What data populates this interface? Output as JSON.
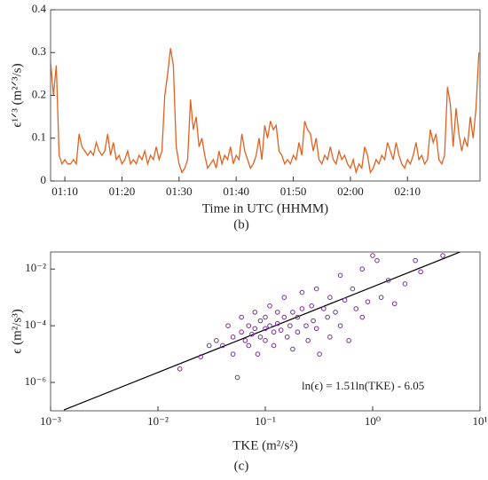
{
  "chart_data": [
    {
      "type": "line",
      "ylabel": "ϵ¹ᐟ³ (m²ᐟ³/s)",
      "xlabel": "Time in UTC (HHMM)",
      "caption": "(b)",
      "xlim": [
        67.5,
        142.7
      ],
      "ylim": [
        0,
        0.4
      ],
      "xticks": [
        {
          "value": 70,
          "label": "01:10"
        },
        {
          "value": 80,
          "label": "01:20"
        },
        {
          "value": 90,
          "label": "01:30"
        },
        {
          "value": 100,
          "label": "01:40"
        },
        {
          "value": 110,
          "label": "01:50"
        },
        {
          "value": 120,
          "label": "02:00"
        },
        {
          "value": 130,
          "label": "02:10"
        }
      ],
      "yticks": [
        0,
        0.1,
        0.2,
        0.3,
        0.4
      ],
      "series": [
        {
          "color": "#e2611f",
          "x": [
            67.5,
            68,
            68.5,
            69,
            69.5,
            70,
            70.5,
            71,
            71.5,
            72,
            72.5,
            73,
            73.5,
            74,
            74.5,
            75,
            75.5,
            76,
            76.5,
            77,
            77.5,
            78,
            78.5,
            79,
            79.5,
            80,
            80.5,
            81,
            81.5,
            82,
            82.5,
            83,
            83.5,
            84,
            84.5,
            85,
            85.5,
            86,
            86.5,
            87,
            87.5,
            88,
            88.5,
            89,
            89.5,
            90,
            90.5,
            91,
            91.5,
            92,
            92.5,
            93,
            93.5,
            94,
            94.5,
            95,
            95.5,
            96,
            96.5,
            97,
            97.5,
            98,
            98.5,
            99,
            99.5,
            100,
            100.5,
            101,
            101.5,
            102,
            102.5,
            103,
            103.5,
            104,
            104.5,
            105,
            105.5,
            106,
            106.5,
            107,
            107.5,
            108,
            108.5,
            109,
            109.5,
            110,
            110.5,
            111,
            111.5,
            112,
            112.5,
            113,
            113.5,
            114,
            114.5,
            115,
            115.5,
            116,
            116.5,
            117,
            117.5,
            118,
            118.5,
            119,
            119.5,
            120,
            120.5,
            121,
            121.5,
            122,
            122.5,
            123,
            123.5,
            124,
            124.5,
            125,
            125.5,
            126,
            126.5,
            127,
            127.5,
            128,
            128.5,
            129,
            129.5,
            130,
            130.5,
            131,
            131.5,
            132,
            132.5,
            133,
            133.5,
            134,
            134.5,
            135,
            135.5,
            136,
            136.5,
            137,
            137.5,
            138,
            138.5,
            139,
            139.5,
            140,
            140.5,
            141,
            141.5,
            142,
            142.5
          ],
          "values": [
            0.28,
            0.2,
            0.27,
            0.06,
            0.04,
            0.05,
            0.04,
            0.04,
            0.05,
            0.04,
            0.11,
            0.08,
            0.07,
            0.06,
            0.07,
            0.06,
            0.09,
            0.07,
            0.06,
            0.07,
            0.11,
            0.06,
            0.09,
            0.05,
            0.06,
            0.04,
            0.05,
            0.07,
            0.04,
            0.05,
            0.04,
            0.06,
            0.05,
            0.07,
            0.04,
            0.06,
            0.05,
            0.08,
            0.05,
            0.07,
            0.2,
            0.25,
            0.31,
            0.27,
            0.08,
            0.04,
            0.02,
            0.03,
            0.05,
            0.19,
            0.12,
            0.15,
            0.08,
            0.1,
            0.06,
            0.03,
            0.04,
            0.05,
            0.03,
            0.07,
            0.04,
            0.06,
            0.05,
            0.08,
            0.04,
            0.06,
            0.05,
            0.11,
            0.07,
            0.05,
            0.03,
            0.04,
            0.06,
            0.1,
            0.05,
            0.13,
            0.1,
            0.14,
            0.12,
            0.13,
            0.07,
            0.06,
            0.04,
            0.05,
            0.04,
            0.06,
            0.05,
            0.09,
            0.06,
            0.14,
            0.12,
            0.11,
            0.07,
            0.1,
            0.05,
            0.04,
            0.06,
            0.05,
            0.08,
            0.05,
            0.04,
            0.07,
            0.05,
            0.06,
            0.04,
            0.03,
            0.05,
            0.02,
            0.04,
            0.03,
            0.08,
            0.06,
            0.02,
            0.03,
            0.05,
            0.04,
            0.06,
            0.05,
            0.09,
            0.07,
            0.05,
            0.09,
            0.06,
            0.04,
            0.03,
            0.05,
            0.04,
            0.06,
            0.09,
            0.05,
            0.06,
            0.04,
            0.05,
            0.12,
            0.09,
            0.11,
            0.05,
            0.04,
            0.06,
            0.22,
            0.18,
            0.08,
            0.17,
            0.11,
            0.07,
            0.1,
            0.08,
            0.15,
            0.1,
            0.17,
            0.3
          ]
        }
      ]
    },
    {
      "type": "scatter",
      "ylabel": "ϵ (m²/s³)",
      "xlabel": "TKE (m²/s²)",
      "caption": "(c)",
      "annotation": "ln(ϵ) = 1.51ln(TKE) - 6.05",
      "xscale": "log",
      "yscale": "log",
      "xlim": [
        0.001,
        10
      ],
      "ylim": [
        1e-07,
        0.04
      ],
      "xticks": [
        {
          "value": 0.001,
          "label": "10⁻³"
        },
        {
          "value": 0.01,
          "label": "10⁻²"
        },
        {
          "value": 0.1,
          "label": "10⁻¹"
        },
        {
          "value": 1,
          "label": "10⁰"
        },
        {
          "value": 10,
          "label": "10¹"
        }
      ],
      "yticks": [
        {
          "value": 1e-06,
          "label": "10⁻⁶"
        },
        {
          "value": 0.0001,
          "label": "10⁻⁴"
        },
        {
          "value": 0.01,
          "label": "10⁻²"
        }
      ],
      "series": [
        {
          "color": "#7b2d9e",
          "x": [
            0.016,
            0.025,
            0.03,
            0.035,
            0.04,
            0.045,
            0.05,
            0.05,
            0.055,
            0.06,
            0.06,
            0.065,
            0.07,
            0.07,
            0.075,
            0.08,
            0.08,
            0.085,
            0.09,
            0.09,
            0.1,
            0.1,
            0.1,
            0.11,
            0.11,
            0.12,
            0.12,
            0.13,
            0.13,
            0.14,
            0.15,
            0.15,
            0.16,
            0.17,
            0.18,
            0.18,
            0.2,
            0.2,
            0.22,
            0.22,
            0.24,
            0.25,
            0.27,
            0.28,
            0.3,
            0.3,
            0.32,
            0.35,
            0.38,
            0.4,
            0.4,
            0.45,
            0.5,
            0.5,
            0.55,
            0.6,
            0.65,
            0.7,
            0.8,
            0.8,
            0.9,
            1.0,
            1.1,
            1.2,
            1.4,
            1.6,
            2.0,
            2.5,
            2.8,
            4.5
          ],
          "values": [
            3e-06,
            8e-06,
            2e-05,
            3e-05,
            2e-05,
            0.0001,
            4e-05,
            1e-05,
            1.5e-06,
            6e-05,
            0.0002,
            3e-05,
            0.0001,
            2e-05,
            5e-05,
            0.0003,
            8e-05,
            1e-05,
            0.00015,
            4e-05,
            0.0002,
            8e-05,
            3e-05,
            0.0005,
            0.0001,
            6e-05,
            2e-05,
            0.0003,
            0.00012,
            7e-05,
            0.001,
            0.0002,
            4e-05,
            0.0001,
            0.0003,
            1.5e-05,
            0.0002,
            6e-05,
            0.0015,
            0.0004,
            0.0001,
            3e-05,
            0.0005,
            0.00015,
            0.002,
            8e-05,
            1e-05,
            0.0004,
            0.0002,
            0.001,
            4e-05,
            0.0003,
            0.006,
            0.0001,
            0.0008,
            3e-05,
            0.002,
            0.0004,
            0.01,
            0.0002,
            0.0007,
            0.03,
            0.02,
            0.001,
            0.004,
            0.0006,
            0.003,
            0.02,
            0.008,
            0.03
          ]
        }
      ],
      "fit": {
        "color": "#000000",
        "x": [
          0.00133,
          6.52
        ],
        "values": [
          1.07e-07,
          0.04
        ]
      }
    }
  ]
}
